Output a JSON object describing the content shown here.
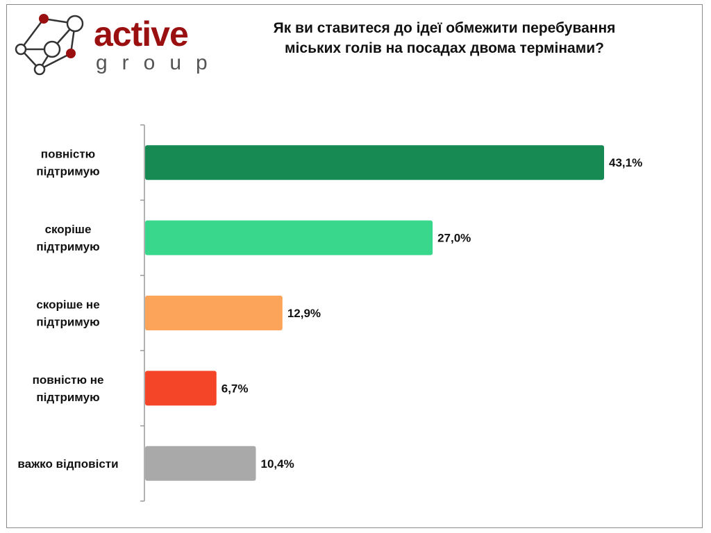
{
  "logo": {
    "line1": "active",
    "line2": "group"
  },
  "chart_data": {
    "type": "bar",
    "orientation": "horizontal",
    "title": "Як ви ставитеся до ідеї обмежити перебування міських голів на посадах двома термінами?",
    "title_lines": [
      "Як ви ставитеся до ідеї обмежити перебування",
      "міських голів на посадах двома термінами?"
    ],
    "categories": [
      [
        "повністю",
        "підтримую"
      ],
      [
        "скоріше",
        "підтримую"
      ],
      [
        "скоріше не",
        "підтримую"
      ],
      [
        "повністю не",
        "підтримую"
      ],
      [
        "важко відповісти"
      ]
    ],
    "values": [
      43.1,
      27.0,
      12.9,
      6.7,
      10.4
    ],
    "value_labels": [
      "43,1%",
      "27,0%",
      "12,9%",
      "6,7%",
      "10,4%"
    ],
    "colors": [
      "#178a54",
      "#38d78b",
      "#fca55a",
      "#f44528",
      "#a9a9a9"
    ],
    "xlabel": "",
    "ylabel": "",
    "xlim": [
      0,
      45
    ],
    "grid": false,
    "legend": "none"
  }
}
